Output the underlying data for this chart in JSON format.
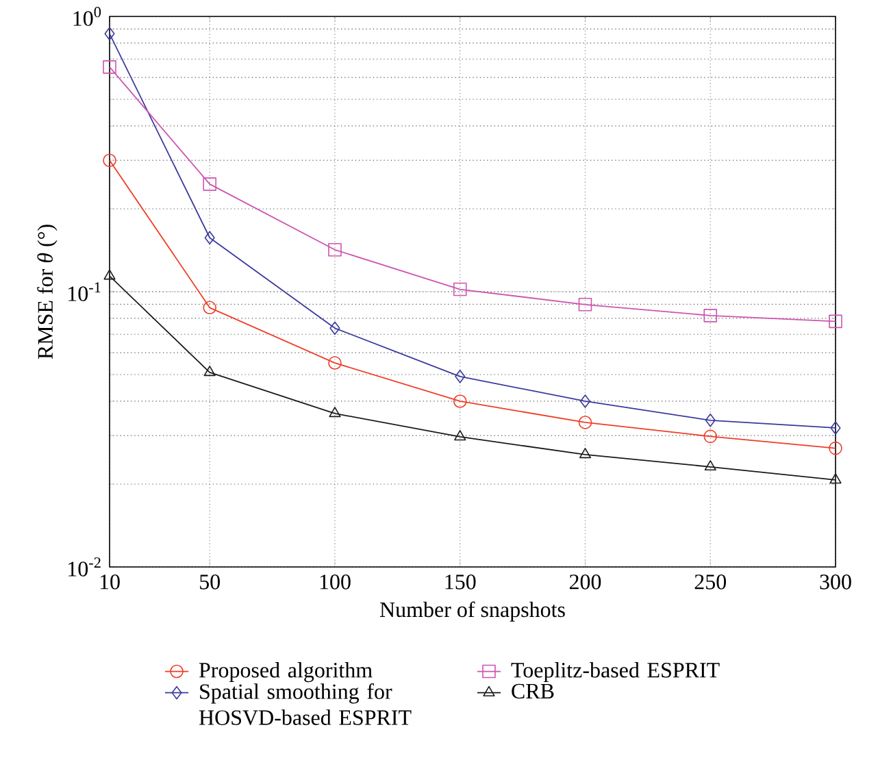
{
  "chart_data": {
    "type": "line",
    "xlabel": "Number of snapshots",
    "ylabel": "RMSE for *θ* (°)",
    "x": [
      10,
      50,
      100,
      150,
      200,
      250,
      300
    ],
    "series": [
      {
        "name": "Proposed algorithm",
        "color": "#f03c28",
        "marker": "circle",
        "values": [
          0.3,
          0.0875,
          0.0551,
          0.04,
          0.0335,
          0.0298,
          0.027
        ]
      },
      {
        "name": "Spatial smoothing for HOSVD-based ESPRIT",
        "color": "#3a3a9e",
        "marker": "diamond",
        "values": [
          0.865,
          0.157,
          0.0737,
          0.0492,
          0.04,
          0.0341,
          0.032
        ]
      },
      {
        "name": "Toeplitz-based ESPRIT",
        "color": "#cc55b0",
        "marker": "square",
        "values": [
          0.655,
          0.246,
          0.142,
          0.102,
          0.0898,
          0.0819,
          0.078
        ]
      },
      {
        "name": "CRB",
        "color": "#1a1a1a",
        "marker": "triangle",
        "values": [
          0.114,
          0.0509,
          0.0361,
          0.0297,
          0.0256,
          0.0231,
          0.0207
        ]
      }
    ],
    "xlim": [
      10,
      300
    ],
    "xticks": [
      10,
      50,
      100,
      150,
      200,
      250,
      300
    ],
    "ylim": [
      0.01,
      1
    ],
    "yticks": [
      {
        "value": 0.01,
        "label": "10$^{-2}$"
      },
      {
        "value": 0.1,
        "label": "10$^{-1}$"
      },
      {
        "value": 1,
        "label": "10$^{0}$"
      }
    ],
    "log": true,
    "grid": true,
    "legend": "bottom",
    "line_style": "solid"
  }
}
